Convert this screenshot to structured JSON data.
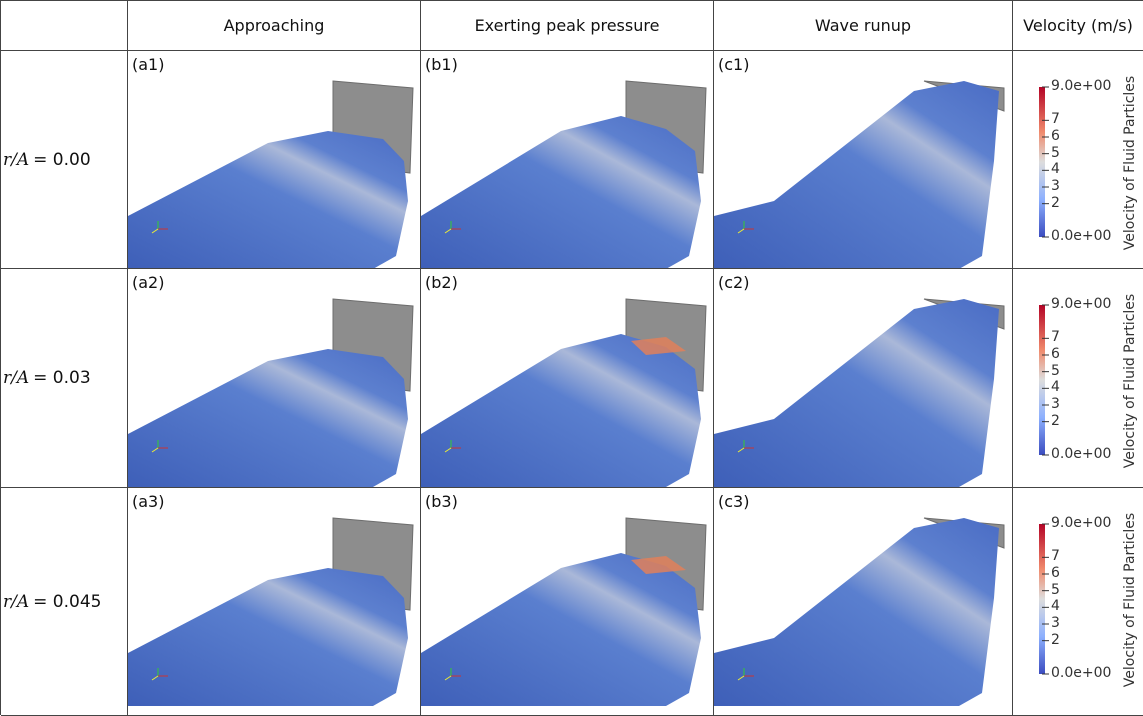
{
  "header": {
    "columns": [
      "Approaching",
      "Exerting peak pressure",
      "Wave runup",
      "Velocity (m/s)"
    ]
  },
  "rows": [
    {
      "symbol": "r/A",
      "value": "= 0.00",
      "panels": [
        "(a1)",
        "(b1)",
        "(c1)"
      ],
      "colorbar": {
        "title": "Velocity of Fluid Particles",
        "max": "9.0e+00",
        "ticks": [
          "7",
          "6",
          "5",
          "4",
          "3",
          "2"
        ],
        "min": "0.0e+00"
      }
    },
    {
      "symbol": "r/A",
      "value": "= 0.03",
      "panels": [
        "(a2)",
        "(b2)",
        "(c2)"
      ],
      "colorbar": {
        "title": "Velocity of Fluid Particles",
        "max": "9.0e+00",
        "ticks": [
          "7",
          "6",
          "5",
          "4",
          "3",
          "2"
        ],
        "min": "0.0e+00"
      }
    },
    {
      "symbol": "r/A",
      "value": "= 0.045",
      "panels": [
        "(a3)",
        "(b3)",
        "(c3)"
      ],
      "colorbar": {
        "title": "Velocity of Fluid Particles",
        "max": "9.0e+00",
        "ticks": [
          "7",
          "6",
          "5",
          "4",
          "3",
          "2"
        ],
        "min": "0.0e+00"
      }
    }
  ]
}
